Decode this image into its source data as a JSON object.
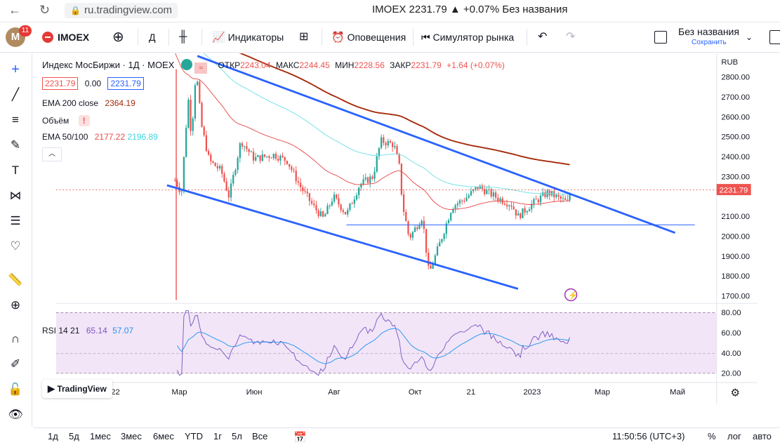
{
  "browser": {
    "url": "ru.tradingview.com",
    "tab_title": "IMOEX 2231.79 ▲ +0.07% Без названия"
  },
  "toolbar": {
    "avatar_letter": "M",
    "notification_count": "11",
    "symbol": "IMOEX",
    "interval": "Д",
    "indicators_label": "Индикаторы",
    "alerts_label": "Оповещения",
    "replay_label": "Симулятор рынка",
    "layout_name": "Без названия",
    "layout_status": "Сохранить"
  },
  "legend": {
    "title": "Индекс МосБиржи · 1Д · MOEX",
    "open_label": "ОТКР",
    "open": "2243.04",
    "high_label": "МАКС",
    "high": "2244.45",
    "low_label": "МИН",
    "low": "2228.56",
    "close_label": "ЗАКР",
    "close": "2231.79",
    "change": "+1.64 (+0.07%)",
    "bid": "2231.79",
    "spread": "0.00",
    "ask": "2231.79",
    "ema200_label": "EMA 200 close",
    "ema200_value": "2364.19",
    "volume_label": "Объём",
    "ema50_label": "EMA 50/100",
    "ema50_value": "2177.22",
    "ema100_value": "2196.89",
    "rsi_label": "RSI 14 21",
    "rsi_value": "65.14",
    "rsi_ma_value": "57.07"
  },
  "price_axis": {
    "currency": "RUB",
    "ticks": [
      "2800.00",
      "2700.00",
      "2600.00",
      "2500.00",
      "2400.00",
      "2300.00",
      "2200.00",
      "2100.00",
      "2000.00",
      "1900.00",
      "1800.00",
      "1700.00"
    ],
    "last_price_label": "2231.79"
  },
  "rsi_axis": {
    "ticks": [
      "80.00",
      "60.00",
      "40.00",
      "20.00"
    ]
  },
  "time_axis": {
    "labels": [
      "2022",
      "Мар",
      "Июн",
      "Авг",
      "Окт",
      "21",
      "2023",
      "Мар",
      "Май"
    ]
  },
  "watermark": "TradingView",
  "bottombar": {
    "ranges": [
      "1д",
      "5д",
      "1мес",
      "3мес",
      "6мес",
      "YTD",
      "1г",
      "5л",
      "Все"
    ],
    "clock": "11:50:56 (UTC+3)",
    "percent": "%",
    "log": "лог",
    "auto": "авто"
  },
  "colors": {
    "up": "#26a69a",
    "down": "#ef5350",
    "ema200": "#a52a0a",
    "ema50": "#e84a4a",
    "ema100": "#6fe0e6",
    "trendline": "#2962ff",
    "rsi": "#7e57c2",
    "rsi_ma": "#2196f3",
    "rsi_band": "#f2e5f7"
  }
}
